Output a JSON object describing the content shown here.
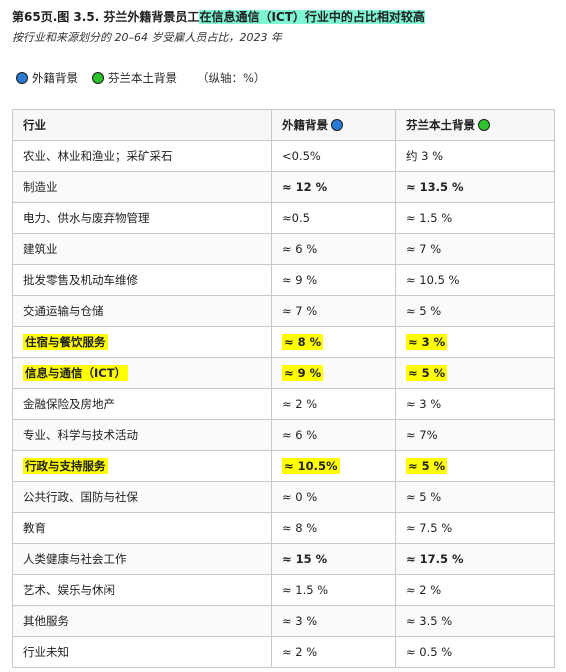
{
  "title": {
    "prefix": "第65页.图 3.5. 芬兰外籍背景员工",
    "highlight": "在信息通信（ICT）行业中的占比相对较高"
  },
  "subtitle": "按行业和来源划分的 20–64 岁受雇人员占比，2023 年",
  "legend": {
    "foreign_label": "外籍背景",
    "native_label": "芬兰本土背景",
    "axis_note": "（纵轴：%）",
    "foreign_color": "#2a7bd4",
    "native_color": "#2ec22e"
  },
  "table": {
    "headers": [
      "行业",
      "外籍背景",
      "芬兰本土背景"
    ],
    "rows": [
      {
        "industry": "农业、林业和渔业；采矿采石",
        "foreign": "<0.5%",
        "native": "约 3 %",
        "bold": false,
        "highlight": false
      },
      {
        "industry": "制造业",
        "foreign": "≈ 12 %",
        "native": "≈ 13.5 %",
        "bold": true,
        "highlight": false
      },
      {
        "industry": "电力、供水与废弃物管理",
        "foreign": "≈0.5",
        "native": "≈ 1.5 %",
        "bold": false,
        "highlight": false
      },
      {
        "industry": "建筑业",
        "foreign": "≈ 6 %",
        "native": "≈ 7 %",
        "bold": false,
        "highlight": false
      },
      {
        "industry": "批发零售及机动车维修",
        "foreign": "≈ 9 %",
        "native": "≈ 10.5 %",
        "bold": false,
        "highlight": false
      },
      {
        "industry": "交通运输与仓储",
        "foreign": "≈ 7 %",
        "native": "≈ 5 %",
        "bold": false,
        "highlight": false
      },
      {
        "industry": "住宿与餐饮服务",
        "foreign": "≈ 8 %",
        "native": "≈ 3 %",
        "bold": true,
        "highlight": true
      },
      {
        "industry": "信息与通信（ICT）",
        "foreign": "≈ 9 %",
        "native": "≈ 5 %",
        "bold": true,
        "highlight": true
      },
      {
        "industry": "金融保险及房地产",
        "foreign": "≈ 2 %",
        "native": "≈ 3 %",
        "bold": false,
        "highlight": false
      },
      {
        "industry": "专业、科学与技术活动",
        "foreign": "≈ 6 %",
        "native": "≈ 7%",
        "bold": false,
        "highlight": false
      },
      {
        "industry": "行政与支持服务",
        "foreign": "≈ 10.5%",
        "native": "≈ 5 %",
        "bold": true,
        "highlight": true
      },
      {
        "industry": "公共行政、国防与社保",
        "foreign": "≈ 0 %",
        "native": "≈ 5 %",
        "bold": false,
        "highlight": false
      },
      {
        "industry": "教育",
        "foreign": "≈ 8 %",
        "native": "≈ 7.5 %",
        "bold": false,
        "highlight": false
      },
      {
        "industry": "人类健康与社会工作",
        "foreign": "≈ 15 %",
        "native": "≈ 17.5 %",
        "bold": true,
        "highlight": false
      },
      {
        "industry": "艺术、娱乐与休闲",
        "foreign": "≈ 1.5 %",
        "native": "≈ 2 %",
        "bold": false,
        "highlight": false
      },
      {
        "industry": "其他服务",
        "foreign": "≈ 3 %",
        "native": "≈ 3.5 %",
        "bold": false,
        "highlight": false
      },
      {
        "industry": "行业未知",
        "foreign": "≈ 2 %",
        "native": "≈ 0.5 %",
        "bold": false,
        "highlight": false
      }
    ]
  }
}
